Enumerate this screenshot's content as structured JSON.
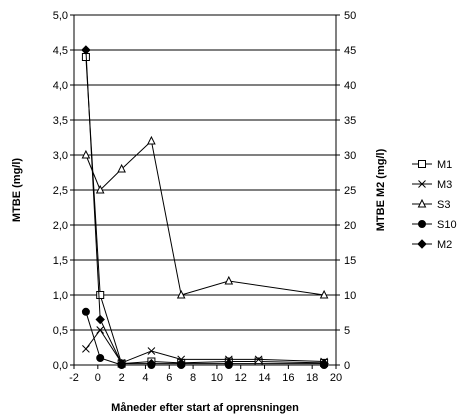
{
  "chart_data": {
    "type": "line",
    "xlabel": "Måneder efter start af oprensningen",
    "ylabel_left": "MTBE (mg/l)",
    "ylabel_right": "MTBE M2 (mg/l)",
    "xlim": [
      -2,
      20
    ],
    "ylim_left": [
      0,
      5
    ],
    "ylim_right": [
      0,
      50
    ],
    "x_ticks": [
      "-2",
      "0",
      "2",
      "4",
      "6",
      "8",
      "10",
      "12",
      "14",
      "16",
      "18",
      "20"
    ],
    "y_left_ticks": [
      "0,0",
      "0,5",
      "1,0",
      "1,5",
      "2,0",
      "2,5",
      "3,0",
      "3,5",
      "4,0",
      "4,5",
      "5,0"
    ],
    "y_right_ticks": [
      "0",
      "5",
      "10",
      "15",
      "20",
      "25",
      "30",
      "35",
      "40",
      "45",
      "50"
    ],
    "grid": "horizontal",
    "legend_position": "right",
    "series": [
      {
        "name": "M1",
        "axis": "left",
        "marker": "open-square",
        "color": "#000000",
        "x": [
          -1,
          0.2,
          2,
          4.5,
          7,
          11,
          13.5,
          19
        ],
        "y": [
          4.4,
          1.0,
          0.02,
          0.05,
          0.03,
          0.05,
          0.05,
          0.03
        ]
      },
      {
        "name": "M3",
        "axis": "left",
        "marker": "x",
        "color": "#000000",
        "x": [
          -1,
          0.2,
          2,
          4.5,
          7,
          11,
          13.5,
          19
        ],
        "y": [
          0.23,
          0.5,
          0.03,
          0.2,
          0.08,
          0.08,
          0.08,
          0.05
        ]
      },
      {
        "name": "S3",
        "axis": "left",
        "marker": "open-triangle",
        "color": "#000000",
        "x": [
          -1,
          0.2,
          2,
          4.5,
          7,
          11,
          19
        ],
        "y": [
          3.0,
          2.5,
          2.8,
          3.2,
          1.0,
          1.2,
          1.0
        ]
      },
      {
        "name": "S10",
        "axis": "left",
        "marker": "filled-circle",
        "color": "#000000",
        "x": [
          -1,
          0.2,
          2,
          4.5,
          7,
          11,
          19
        ],
        "y": [
          0.76,
          0.1,
          0.0,
          0.0,
          0.0,
          0.0,
          0.0
        ]
      },
      {
        "name": "M2",
        "axis": "right",
        "marker": "filled-diamond",
        "color": "#000000",
        "x": [
          -1,
          0.2,
          2,
          4.5,
          7,
          11,
          19
        ],
        "y": [
          45,
          6.5,
          0.2,
          0.2,
          0.2,
          0.2,
          0.2
        ]
      }
    ]
  }
}
